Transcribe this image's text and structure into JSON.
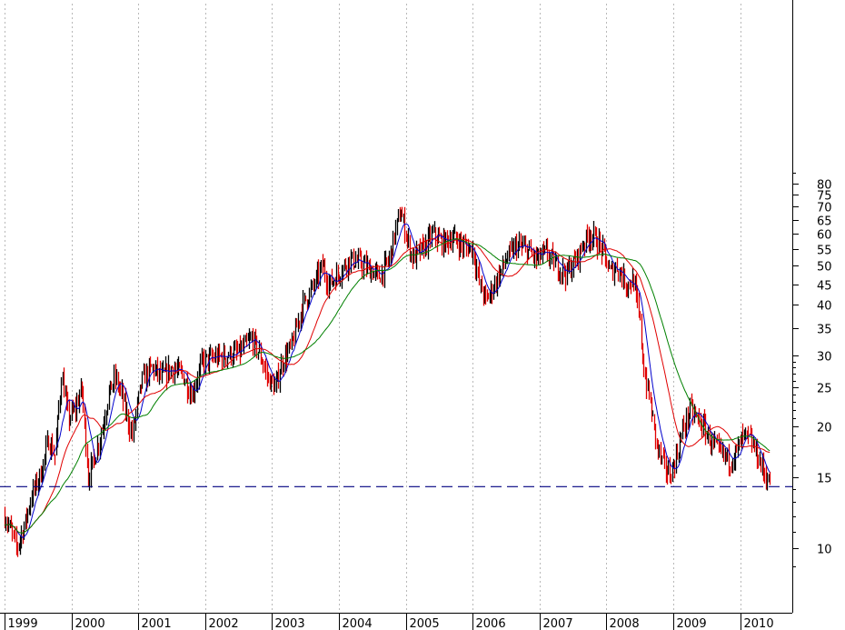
{
  "chart_data": {
    "type": "candlestick",
    "title": "",
    "xlabel": "",
    "ylabel": "",
    "scale": "log",
    "ylim": [
      8,
      90
    ],
    "x_range": [
      1999.0,
      2010.45
    ],
    "grid": "vertical dotted at year boundaries",
    "y_tick_labels": [
      "10",
      "15",
      "20",
      "25",
      "30",
      "35",
      "40",
      "45",
      "50",
      "55",
      "60",
      "65",
      "70",
      "75",
      "80"
    ],
    "y_ticks": [
      10,
      15,
      20,
      25,
      30,
      35,
      40,
      45,
      50,
      55,
      60,
      65,
      70,
      75,
      80
    ],
    "x_tick_labels": [
      "1999",
      "2000",
      "2001",
      "2002",
      "2003",
      "2004",
      "2005",
      "2006",
      "2007",
      "2008",
      "2009",
      "2010"
    ],
    "x_ticks": [
      1999,
      2000,
      2001,
      2002,
      2003,
      2004,
      2005,
      2006,
      2007,
      2008,
      2009,
      2010
    ],
    "horizontal_line": {
      "value": 14.2,
      "style": "dashed",
      "color": "#000080"
    },
    "colors": {
      "up": "#000000",
      "down": "#e00000",
      "ma_short": "#0000cc",
      "ma_mid": "#e00000",
      "ma_long": "#008000"
    },
    "price_path": [
      [
        1999.0,
        12.0
      ],
      [
        1999.1,
        11.0
      ],
      [
        1999.18,
        10.0
      ],
      [
        1999.3,
        11.5
      ],
      [
        1999.4,
        13.5
      ],
      [
        1999.55,
        15.5
      ],
      [
        1999.65,
        18.5
      ],
      [
        1999.75,
        17.0
      ],
      [
        1999.85,
        27.0
      ],
      [
        1999.95,
        21.0
      ],
      [
        2000.05,
        22.0
      ],
      [
        2000.15,
        25.0
      ],
      [
        2000.25,
        15.0
      ],
      [
        2000.35,
        17.0
      ],
      [
        2000.45,
        19.5
      ],
      [
        2000.55,
        24.0
      ],
      [
        2000.65,
        26.5
      ],
      [
        2000.75,
        24.0
      ],
      [
        2000.9,
        19.0
      ],
      [
        2001.05,
        26.0
      ],
      [
        2001.2,
        28.0
      ],
      [
        2001.35,
        26.5
      ],
      [
        2001.5,
        28.0
      ],
      [
        2001.65,
        27.0
      ],
      [
        2001.8,
        24.0
      ],
      [
        2001.95,
        29.0
      ],
      [
        2002.1,
        29.5
      ],
      [
        2002.3,
        30.0
      ],
      [
        2002.5,
        30.5
      ],
      [
        2002.7,
        33.0
      ],
      [
        2002.82,
        30.0
      ],
      [
        2002.95,
        26.0
      ],
      [
        2003.05,
        25.0
      ],
      [
        2003.15,
        29.0
      ],
      [
        2003.3,
        32.0
      ],
      [
        2003.45,
        40.0
      ],
      [
        2003.6,
        44.0
      ],
      [
        2003.75,
        50.0
      ],
      [
        2003.85,
        45.0
      ],
      [
        2004.0,
        48.0
      ],
      [
        2004.15,
        52.0
      ],
      [
        2004.3,
        51.0
      ],
      [
        2004.45,
        49.0
      ],
      [
        2004.6,
        47.0
      ],
      [
        2004.75,
        52.0
      ],
      [
        2004.85,
        62.0
      ],
      [
        2004.92,
        68.0
      ],
      [
        2005.0,
        60.0
      ],
      [
        2005.1,
        52.0
      ],
      [
        2005.25,
        55.0
      ],
      [
        2005.4,
        60.0
      ],
      [
        2005.55,
        57.0
      ],
      [
        2005.7,
        59.0
      ],
      [
        2005.85,
        56.0
      ],
      [
        2006.0,
        55.0
      ],
      [
        2006.1,
        45.0
      ],
      [
        2006.2,
        41.0
      ],
      [
        2006.35,
        46.0
      ],
      [
        2006.5,
        52.0
      ],
      [
        2006.65,
        56.0
      ],
      [
        2006.8,
        55.0
      ],
      [
        2006.95,
        52.0
      ],
      [
        2007.1,
        54.0
      ],
      [
        2007.25,
        50.0
      ],
      [
        2007.4,
        48.0
      ],
      [
        2007.55,
        52.0
      ],
      [
        2007.65,
        57.0
      ],
      [
        2007.75,
        60.0
      ],
      [
        2007.85,
        58.0
      ],
      [
        2007.95,
        54.0
      ],
      [
        2008.05,
        48.0
      ],
      [
        2008.15,
        50.0
      ],
      [
        2008.3,
        45.0
      ],
      [
        2008.4,
        46.0
      ],
      [
        2008.5,
        36.0
      ],
      [
        2008.55,
        28.0
      ],
      [
        2008.65,
        23.0
      ],
      [
        2008.75,
        18.0
      ],
      [
        2008.85,
        16.0
      ],
      [
        2008.95,
        15.2
      ],
      [
        2009.05,
        17.0
      ],
      [
        2009.15,
        20.0
      ],
      [
        2009.25,
        22.0
      ],
      [
        2009.35,
        21.0
      ],
      [
        2009.45,
        20.0
      ],
      [
        2009.55,
        18.5
      ],
      [
        2009.65,
        17.5
      ],
      [
        2009.75,
        17.0
      ],
      [
        2009.85,
        16.5
      ],
      [
        2009.95,
        17.5
      ],
      [
        2010.05,
        19.0
      ],
      [
        2010.15,
        18.5
      ],
      [
        2010.25,
        17.0
      ],
      [
        2010.35,
        15.5
      ],
      [
        2010.43,
        14.6
      ]
    ]
  }
}
